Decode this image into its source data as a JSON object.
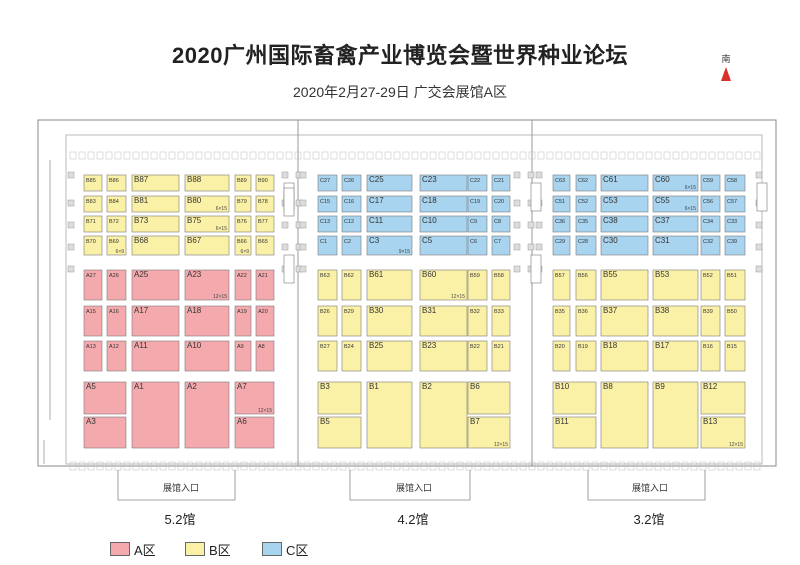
{
  "title": "2020广州国际畜禽产业博览会暨世界种业论坛",
  "subtitle": "2020年2月27-29日  广交会展馆A区",
  "compass": {
    "label": "南"
  },
  "entrance_label": "展馆入口",
  "halls": [
    "5.2馆",
    "4.2馆",
    "3.2馆"
  ],
  "legend": [
    {
      "label": "A区",
      "color": "#f4a9ad"
    },
    {
      "label": "B区",
      "color": "#fbf1a6"
    },
    {
      "label": "C区",
      "color": "#a8d4ef"
    }
  ],
  "colors": {
    "A": "#f4a9ad",
    "B": "#fbf1a6",
    "C": "#a8d4ef"
  },
  "booths": [
    [
      "B85",
      "",
      "B"
    ],
    [
      "B86",
      "",
      "B"
    ],
    [
      "B87",
      "",
      "B"
    ],
    [
      "B88",
      "",
      "B"
    ],
    [
      "B89",
      "",
      "B"
    ],
    [
      "B90",
      "",
      "B"
    ],
    [
      "B83",
      "",
      "B"
    ],
    [
      "B84",
      "",
      "B"
    ],
    [
      "B81",
      "",
      "B"
    ],
    [
      "B80",
      "6×15",
      "B"
    ],
    [
      "B79",
      "",
      "B"
    ],
    [
      "B78",
      "",
      "B"
    ],
    [
      "B71",
      "",
      "B"
    ],
    [
      "B72",
      "",
      "B"
    ],
    [
      "B73",
      "",
      "B"
    ],
    [
      "B75",
      "6×15",
      "B"
    ],
    [
      "B76",
      "",
      "B"
    ],
    [
      "B77",
      "",
      "B"
    ],
    [
      "B70",
      "",
      "B"
    ],
    [
      "B69",
      "6×9",
      "B"
    ],
    [
      "B68",
      "",
      "B"
    ],
    [
      "B67",
      "",
      "B"
    ],
    [
      "B66",
      "6×9",
      "B"
    ],
    [
      "B65",
      "",
      "B"
    ],
    [
      "A27",
      "",
      "A"
    ],
    [
      "A26",
      "",
      "A"
    ],
    [
      "A25",
      "",
      "A"
    ],
    [
      "A23",
      "12×15",
      "A"
    ],
    [
      "A22",
      "",
      "A"
    ],
    [
      "A21",
      "",
      "A"
    ],
    [
      "A15",
      "",
      "A"
    ],
    [
      "A16",
      "",
      "A"
    ],
    [
      "A17",
      "",
      "A"
    ],
    [
      "A18",
      "",
      "A"
    ],
    [
      "A19",
      "",
      "A"
    ],
    [
      "A20",
      "",
      "A"
    ],
    [
      "A13",
      "",
      "A"
    ],
    [
      "A12",
      "",
      "A"
    ],
    [
      "A11",
      "",
      "A"
    ],
    [
      "A10",
      "",
      "A"
    ],
    [
      "A9",
      "",
      "A"
    ],
    [
      "A8",
      "",
      "A"
    ],
    [
      "A5",
      "",
      "A"
    ],
    [
      "A1",
      "",
      "A"
    ],
    [
      "A2",
      "",
      "A"
    ],
    [
      "A7",
      "12×15",
      "A"
    ],
    [
      "A3",
      "",
      "A"
    ],
    [
      "A6",
      "",
      "A"
    ],
    [
      "C27",
      "",
      "C"
    ],
    [
      "C26",
      "",
      "C"
    ],
    [
      "C25",
      "",
      "C"
    ],
    [
      "C23",
      "",
      "C"
    ],
    [
      "C22",
      "",
      "C"
    ],
    [
      "C21",
      "",
      "C"
    ],
    [
      "C15",
      "",
      "C"
    ],
    [
      "C16",
      "",
      "C"
    ],
    [
      "C17",
      "",
      "C"
    ],
    [
      "C18",
      "",
      "C"
    ],
    [
      "C19",
      "",
      "C"
    ],
    [
      "C20",
      "",
      "C"
    ],
    [
      "C13",
      "",
      "C"
    ],
    [
      "C12",
      "",
      "C"
    ],
    [
      "C11",
      "",
      "C"
    ],
    [
      "C10",
      "",
      "C"
    ],
    [
      "C9",
      "",
      "C"
    ],
    [
      "C8",
      "",
      "C"
    ],
    [
      "C1",
      "",
      "C"
    ],
    [
      "C2",
      "",
      "C"
    ],
    [
      "C3",
      "9×15",
      "C"
    ],
    [
      "C5",
      "",
      "C"
    ],
    [
      "C6",
      "",
      "C"
    ],
    [
      "C7",
      "",
      "C"
    ],
    [
      "B63",
      "",
      "B"
    ],
    [
      "B62",
      "",
      "B"
    ],
    [
      "B61",
      "",
      "B"
    ],
    [
      "B60",
      "12×15",
      "B"
    ],
    [
      "B59",
      "",
      "B"
    ],
    [
      "B58",
      "",
      "B"
    ],
    [
      "B26",
      "",
      "B"
    ],
    [
      "B29",
      "",
      "B"
    ],
    [
      "B30",
      "",
      "B"
    ],
    [
      "B31",
      "",
      "B"
    ],
    [
      "B32",
      "",
      "B"
    ],
    [
      "B33",
      "",
      "B"
    ],
    [
      "B27",
      "",
      "B"
    ],
    [
      "B24",
      "",
      "B"
    ],
    [
      "B25",
      "",
      "B"
    ],
    [
      "B23",
      "",
      "B"
    ],
    [
      "B22",
      "",
      "B"
    ],
    [
      "B21",
      "",
      "B"
    ],
    [
      "B3",
      "",
      "B"
    ],
    [
      "B1",
      "",
      "B"
    ],
    [
      "B2",
      "",
      "B"
    ],
    [
      "B6",
      "",
      "B"
    ],
    [
      "B5",
      "",
      "B"
    ],
    [
      "B7",
      "12×15",
      "B"
    ],
    [
      "C63",
      "",
      "C"
    ],
    [
      "C62",
      "",
      "C"
    ],
    [
      "C61",
      "",
      "C"
    ],
    [
      "C60",
      "6×15",
      "C"
    ],
    [
      "C59",
      "",
      "C"
    ],
    [
      "C58",
      "",
      "C"
    ],
    [
      "C51",
      "",
      "C"
    ],
    [
      "C52",
      "",
      "C"
    ],
    [
      "C53",
      "",
      "C"
    ],
    [
      "C55",
      "6×15",
      "C"
    ],
    [
      "C56",
      "",
      "C"
    ],
    [
      "C57",
      "",
      "C"
    ],
    [
      "C36",
      "",
      "C"
    ],
    [
      "C35",
      "",
      "C"
    ],
    [
      "C38",
      "",
      "C"
    ],
    [
      "C37",
      "",
      "C"
    ],
    [
      "C34",
      "",
      "C"
    ],
    [
      "C33",
      "",
      "C"
    ],
    [
      "C29",
      "",
      "C"
    ],
    [
      "C28",
      "",
      "C"
    ],
    [
      "C30",
      "",
      "C"
    ],
    [
      "C31",
      "",
      "C"
    ],
    [
      "C32",
      "",
      "C"
    ],
    [
      "C39",
      "",
      "C"
    ],
    [
      "B57",
      "",
      "B"
    ],
    [
      "B56",
      "",
      "B"
    ],
    [
      "B55",
      "",
      "B"
    ],
    [
      "B53",
      "",
      "B"
    ],
    [
      "B52",
      "",
      "B"
    ],
    [
      "B51",
      "",
      "B"
    ],
    [
      "B35",
      "",
      "B"
    ],
    [
      "B36",
      "",
      "B"
    ],
    [
      "B37",
      "",
      "B"
    ],
    [
      "B38",
      "",
      "B"
    ],
    [
      "B39",
      "",
      "B"
    ],
    [
      "B50",
      "",
      "B"
    ],
    [
      "B20",
      "",
      "B"
    ],
    [
      "B19",
      "",
      "B"
    ],
    [
      "B18",
      "",
      "B"
    ],
    [
      "B17",
      "",
      "B"
    ],
    [
      "B16",
      "",
      "B"
    ],
    [
      "B15",
      "",
      "B"
    ],
    [
      "B10",
      "",
      "B"
    ],
    [
      "B8",
      "",
      "B"
    ],
    [
      "B9",
      "",
      "B"
    ],
    [
      "B12",
      "",
      "B"
    ],
    [
      "B11",
      "",
      "B"
    ],
    [
      "B13",
      "12×15",
      "B"
    ]
  ]
}
